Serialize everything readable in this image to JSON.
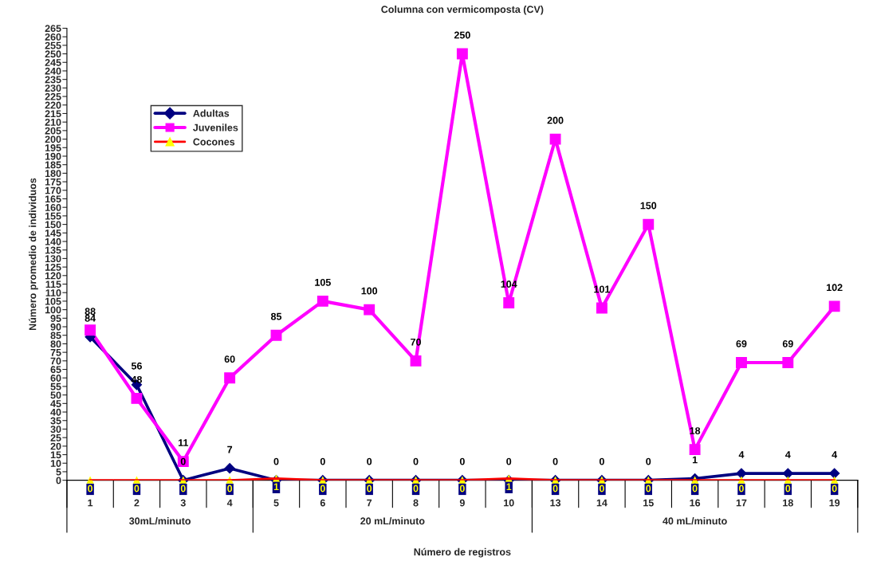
{
  "chart_data": {
    "type": "line",
    "title": "Columna con vermicomposta (CV)",
    "xlabel": "Número de registros",
    "ylabel": "Número promedio de individuos",
    "categories": [
      "1",
      "2",
      "3",
      "4",
      "5",
      "6",
      "7",
      "8",
      "9",
      "10",
      "13",
      "14",
      "15",
      "16",
      "17",
      "18",
      "19"
    ],
    "series": [
      {
        "name": "Adultas",
        "color": "#000080",
        "marker": "diamond",
        "values": [
          84,
          56,
          0,
          7,
          0,
          0,
          0,
          0,
          0,
          0,
          0,
          0,
          0,
          1,
          4,
          4,
          4
        ]
      },
      {
        "name": "Juveniles",
        "color": "#ff00ff",
        "marker": "square",
        "values": [
          88,
          48,
          11,
          60,
          85,
          105,
          100,
          70,
          250,
          104,
          200,
          101,
          150,
          18,
          69,
          69,
          102
        ]
      },
      {
        "name": "Cocones",
        "color": "#ff0000",
        "marker": "triangle",
        "colors": [
          "#ffff00",
          "#ffff00",
          "#ffff00",
          "#ffff00",
          "#ffff00",
          "#ffff00",
          "#ffff00",
          "#ffff00",
          "#ffff00",
          "#ffff00",
          "#ffff00",
          "#ffff00",
          "#ffff00",
          "#ffff00",
          "#ffff00",
          "#ffff00",
          "#ffff00"
        ],
        "values": [
          0,
          0,
          0,
          0,
          1,
          0,
          0,
          0,
          0,
          1,
          0,
          0,
          0,
          0,
          0,
          0,
          0
        ]
      }
    ],
    "annotations": [
      "30mL/minuto",
      "20 mL/minuto",
      "40 mL/minuto"
    ],
    "ylim": [
      0,
      265
    ],
    "yticks": [
      0,
      5,
      10,
      15,
      20,
      25,
      30,
      35,
      40,
      45,
      50,
      55,
      60,
      65,
      70,
      75,
      80,
      85,
      90,
      95,
      100,
      105,
      110,
      115,
      120,
      125,
      130,
      135,
      140,
      145,
      150,
      155,
      160,
      165,
      170,
      175,
      180,
      185,
      190,
      195,
      200,
      205,
      210,
      215,
      220,
      225,
      230,
      235,
      240,
      245,
      250,
      255,
      260,
      265
    ],
    "grid": false,
    "legend": "top left",
    "data_labels": true
  }
}
